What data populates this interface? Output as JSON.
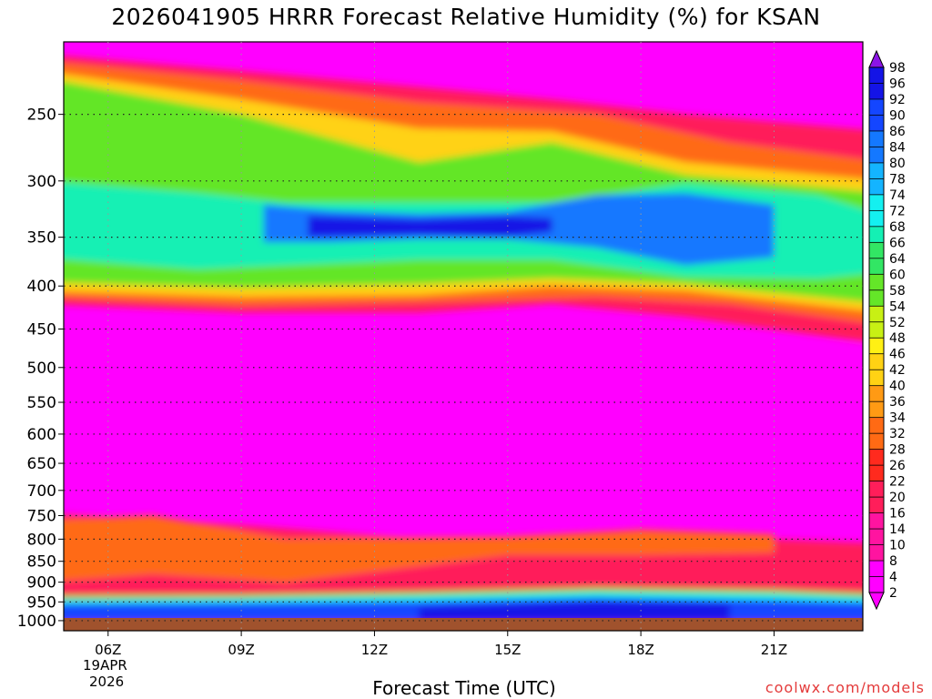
{
  "title": "2026041905 HRRR Forecast Relative Humidity (%) for KSAN",
  "credit": "coolwx.com/models",
  "chart_data": {
    "type": "heatmap",
    "title": "2026041905 HRRR Forecast Relative Humidity (%) for KSAN",
    "xlabel": "Forecast Time (UTC)",
    "ylabel": "",
    "x_ticks": [
      "06Z",
      "09Z",
      "12Z",
      "15Z",
      "18Z",
      "21Z"
    ],
    "x_date_label": [
      "19APR",
      "2026"
    ],
    "y_ticks": [
      250,
      300,
      350,
      400,
      450,
      500,
      550,
      600,
      650,
      700,
      750,
      800,
      850,
      900,
      950,
      1000
    ],
    "y_axis_scale": "log-pressure",
    "x_range_hours_utc": [
      5,
      23
    ],
    "colorbar_levels": [
      2,
      4,
      8,
      10,
      14,
      16,
      20,
      22,
      26,
      28,
      32,
      34,
      36,
      40,
      42,
      46,
      48,
      52,
      54,
      58,
      60,
      64,
      66,
      68,
      72,
      74,
      78,
      80,
      84,
      86,
      90,
      92,
      96,
      98
    ],
    "colorbar_labels": [
      "98",
      "96",
      "92",
      "90",
      "86",
      "84",
      "80",
      "78",
      "74",
      "72",
      "68",
      "66",
      "64",
      "60",
      "58",
      "54",
      "52",
      "48",
      "46",
      "42",
      "40",
      "36",
      "34",
      "32",
      "28",
      "26",
      "22",
      "20",
      "16",
      "14",
      "10",
      "8",
      "4",
      "2"
    ],
    "grid": "dotted",
    "features": [
      {
        "region": "upper troposphere 200-250 hPa",
        "rh": "8-20"
      },
      {
        "region": "250-300 hPa band",
        "rh": "40-60"
      },
      {
        "region": "310-380 hPa moist layer",
        "rh": "70-92"
      },
      {
        "region": "400-450 hPa",
        "rh": "20-40"
      },
      {
        "region": "450-750 hPa",
        "rh": "2-10"
      },
      {
        "region": "750-900 hPa",
        "rh": "16-30"
      },
      {
        "region": "marine layer 950-1000 hPa",
        "rh": "80-98"
      }
    ]
  }
}
